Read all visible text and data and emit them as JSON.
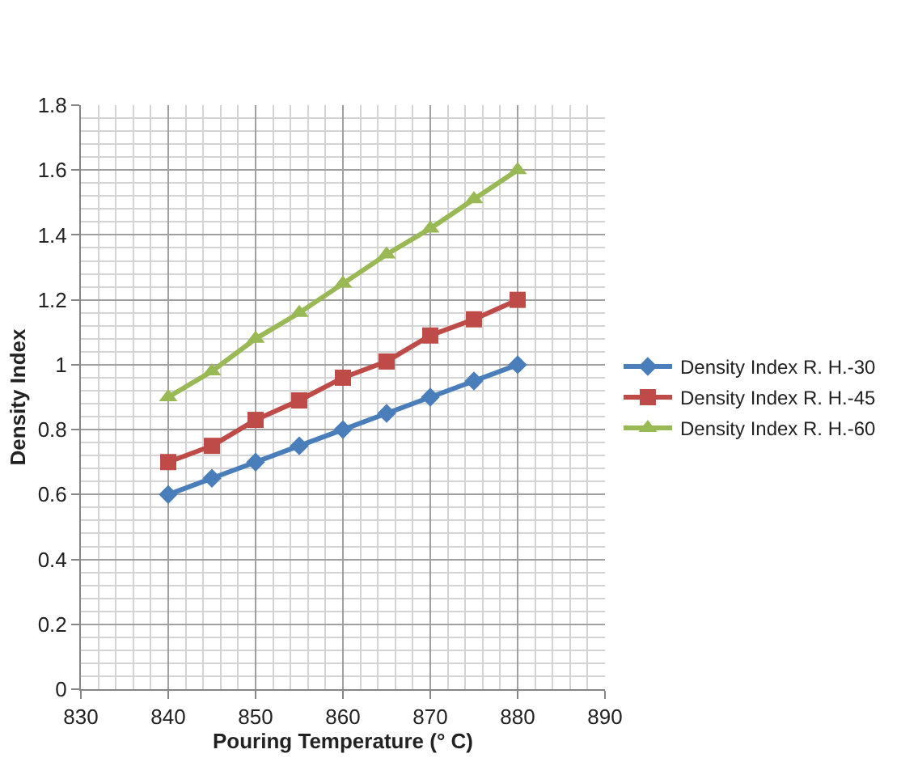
{
  "chart_data": {
    "type": "line",
    "xlabel": "Pouring Temperature (° C)",
    "ylabel": "Density Index",
    "x": [
      840,
      845,
      850,
      855,
      860,
      865,
      870,
      875,
      880
    ],
    "series": [
      {
        "name": "Density Index R. H.-30",
        "color": "#4a7ebb",
        "marker": "diamond",
        "values": [
          0.6,
          0.65,
          0.7,
          0.75,
          0.8,
          0.85,
          0.9,
          0.95,
          1.0
        ]
      },
      {
        "name": "Density Index R. H.-45",
        "color": "#be4b48",
        "marker": "square",
        "values": [
          0.7,
          0.75,
          0.83,
          0.89,
          0.96,
          1.01,
          1.09,
          1.14,
          1.2
        ]
      },
      {
        "name": "Density Index R. H.-60",
        "color": "#98b954",
        "marker": "triangle",
        "values": [
          0.9,
          0.98,
          1.08,
          1.16,
          1.25,
          1.34,
          1.42,
          1.51,
          1.6
        ]
      }
    ],
    "xlim": [
      830,
      890
    ],
    "xticks": [
      830,
      840,
      850,
      860,
      870,
      880,
      890
    ],
    "ylim": [
      0,
      1.8
    ],
    "yticks": [
      0,
      0.2,
      0.4,
      0.6,
      {
        "value": 0.8,
        "label": "0.8"
      },
      {
        "value": 1,
        "label": "1"
      },
      1.2,
      1.4,
      1.6,
      1.8
    ],
    "grid": true,
    "legend": "right",
    "line_style": "solid"
  }
}
